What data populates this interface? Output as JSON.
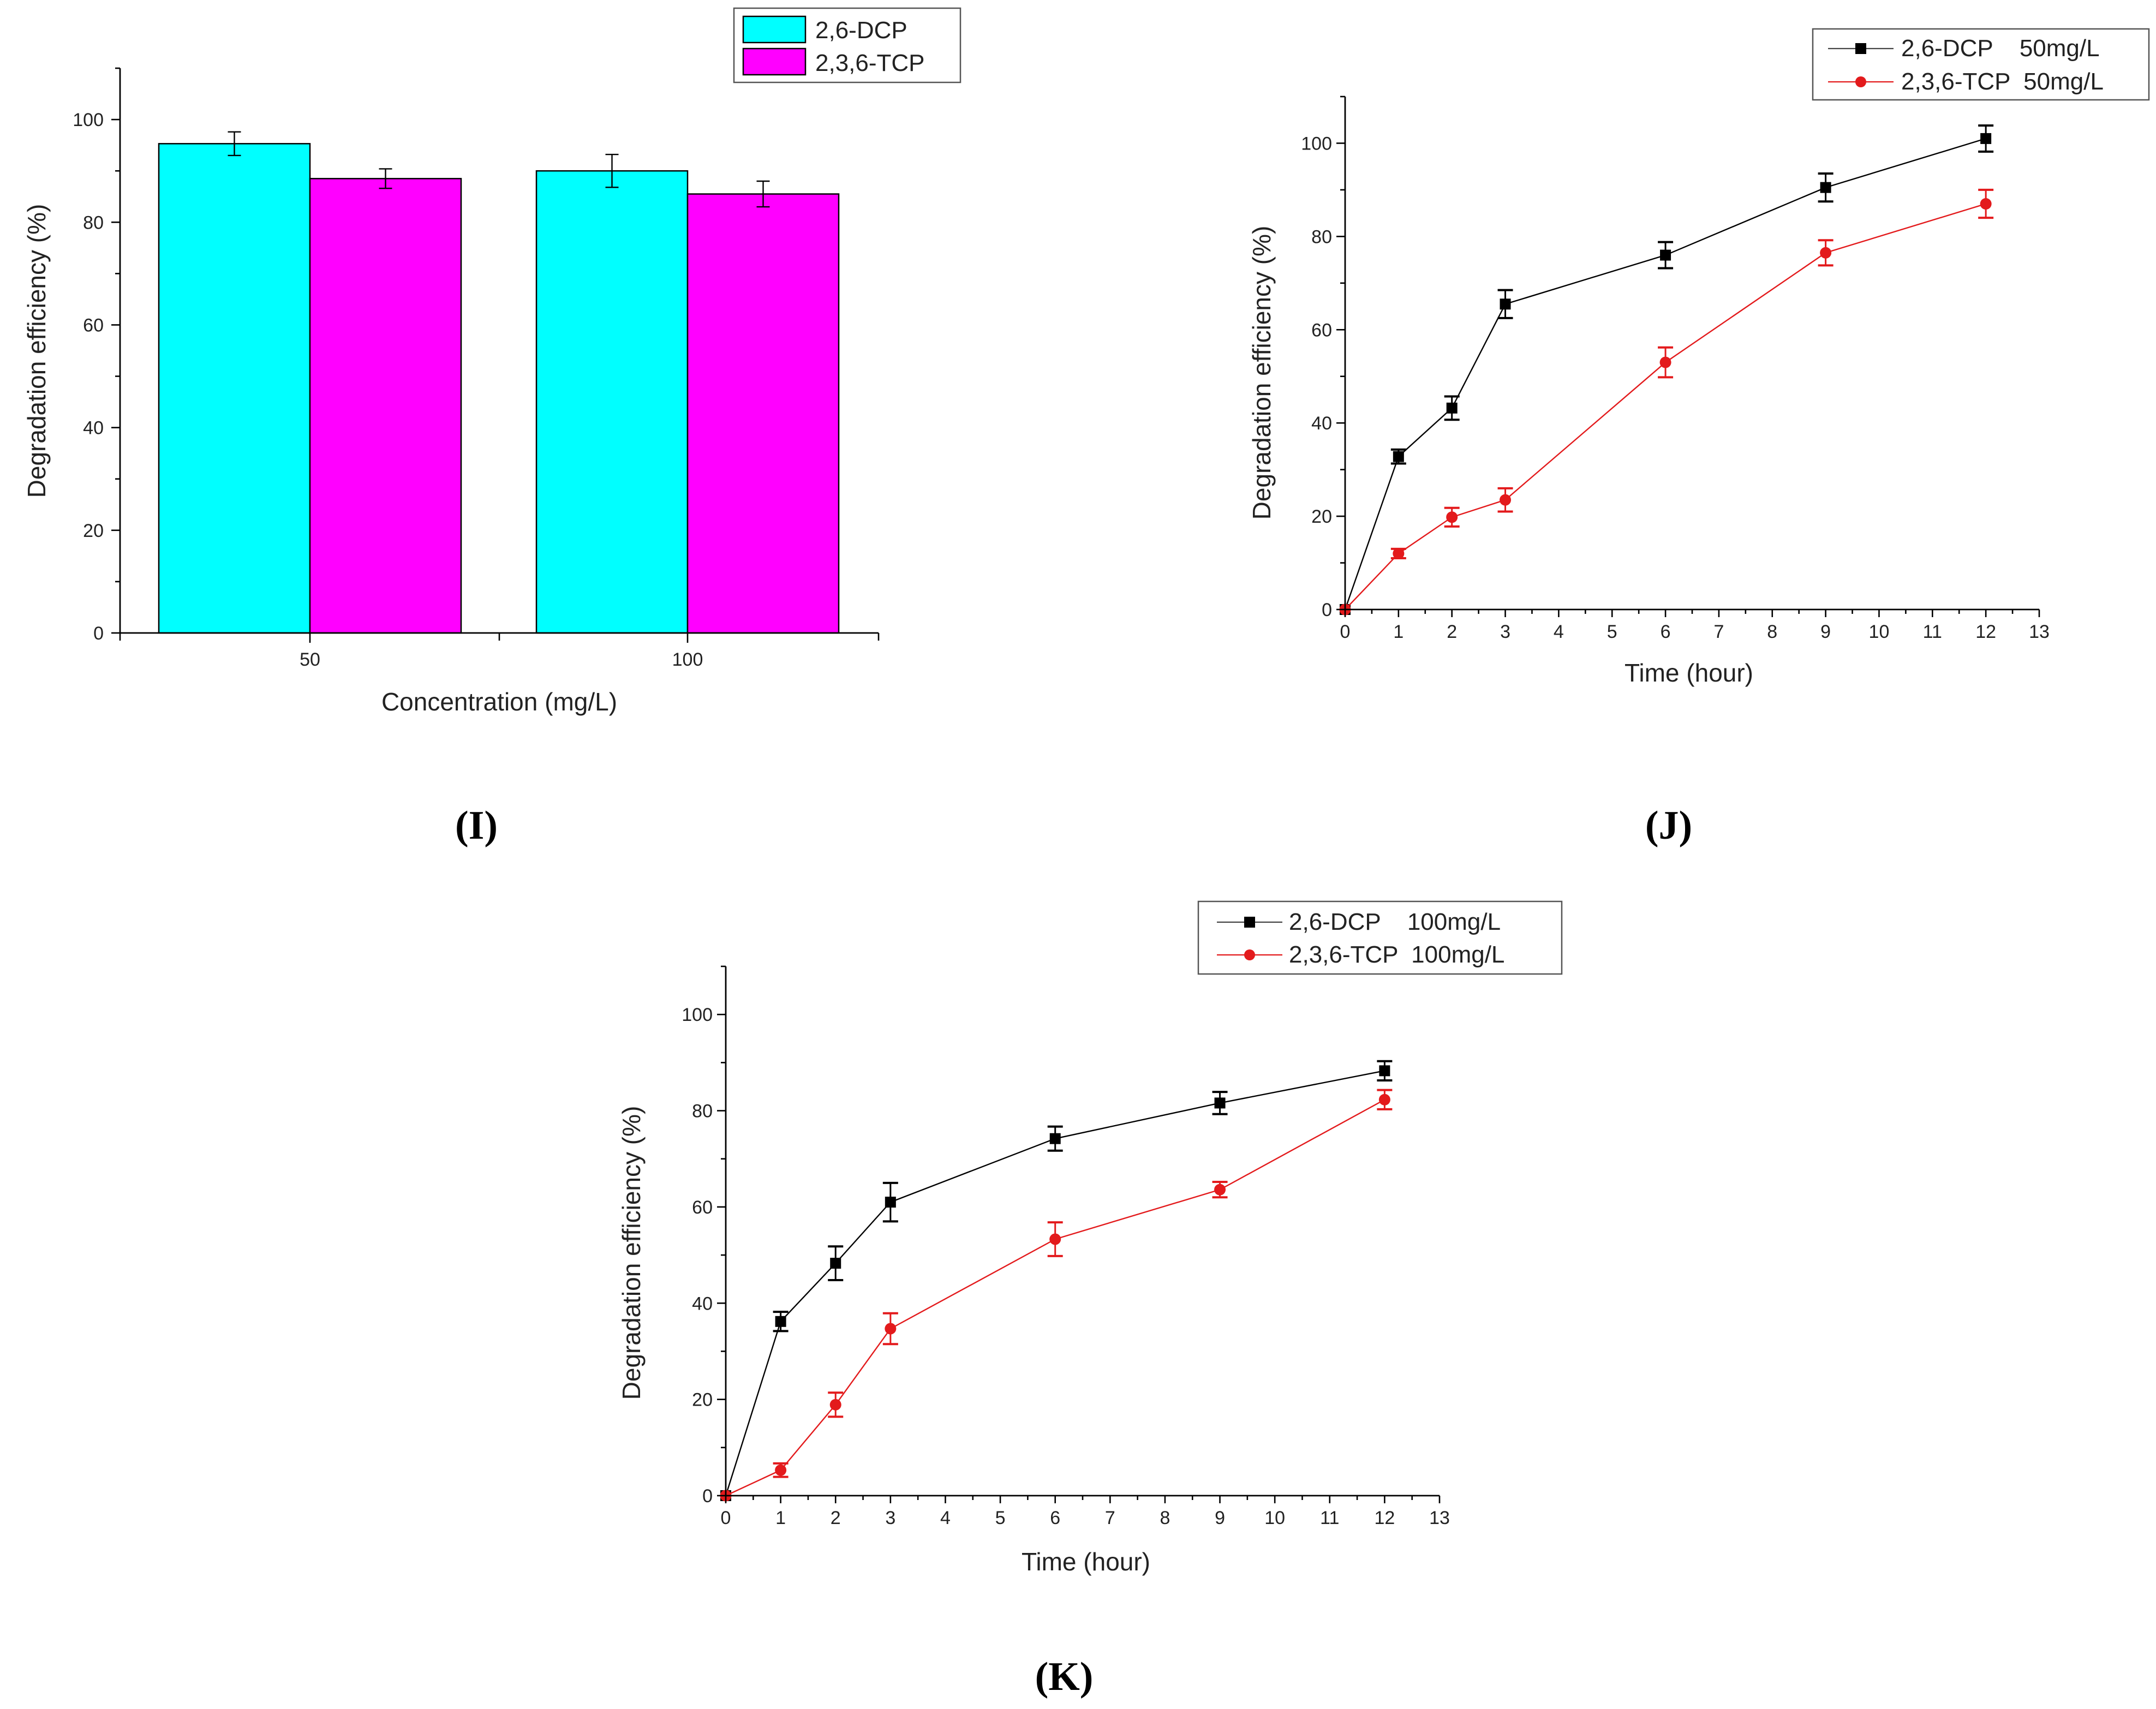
{
  "colors": {
    "dcp_bar": "#00ffff",
    "tcp_bar": "#ff00ff",
    "dcp_line": "#000000",
    "tcp_line": "#e31a1c"
  },
  "chart_data": [
    {
      "id": "I",
      "type": "bar",
      "panel_label": "(I)",
      "xlabel": "Concentration (mg/L)",
      "ylabel": "Degradation efficiency (%)",
      "ylim": [
        0,
        110
      ],
      "yticks": [
        0,
        20,
        40,
        60,
        80,
        100
      ],
      "categories": [
        "50",
        "100"
      ],
      "legend": [
        "2,6-DCP",
        "2,3,6-TCP"
      ],
      "series": [
        {
          "name": "2,6-DCP",
          "values": [
            95.3,
            90.0
          ],
          "errors": [
            2.3,
            3.2
          ]
        },
        {
          "name": "2,3,6-TCP",
          "values": [
            88.5,
            85.5
          ],
          "errors": [
            1.9,
            2.5
          ]
        }
      ]
    },
    {
      "id": "J",
      "type": "line",
      "panel_label": "(J)",
      "xlabel": "Time (hour)",
      "ylabel": "Degradation efficiency (%)",
      "xlim": [
        0,
        13
      ],
      "ylim": [
        0,
        110
      ],
      "xticks": [
        "0",
        "1",
        "2",
        "3",
        "4",
        "5",
        "6",
        "7",
        "8",
        "9",
        "10",
        "11",
        "12",
        "13"
      ],
      "yticks": [
        0,
        20,
        40,
        60,
        80,
        100
      ],
      "x": [
        0,
        1,
        2,
        3,
        6,
        9,
        12
      ],
      "legend": [
        "2,6-DCP    50mg/L",
        "2,3,6-TCP  50mg/L"
      ],
      "series": [
        {
          "name": "2,6-DCP",
          "marker": "square",
          "values": [
            0,
            32.8,
            43.2,
            65.5,
            76.0,
            90.5,
            101.0
          ],
          "errors": [
            0,
            1.5,
            2.5,
            3.0,
            2.8,
            3.0,
            2.8
          ]
        },
        {
          "name": "2,3,6-TCP",
          "marker": "circle",
          "values": [
            0,
            12.0,
            19.8,
            23.5,
            53.0,
            76.5,
            87.0
          ],
          "errors": [
            0,
            1.0,
            2.0,
            2.5,
            3.2,
            2.7,
            3.0
          ]
        }
      ]
    },
    {
      "id": "K",
      "type": "line",
      "panel_label": "(K)",
      "xlabel": "Time (hour)",
      "ylabel": "Degradation efficiency (%)",
      "xlim": [
        0,
        13
      ],
      "ylim": [
        0,
        110
      ],
      "xticks": [
        "0",
        "1",
        "2",
        "3",
        "4",
        "5",
        "6",
        "7",
        "8",
        "9",
        "10",
        "11",
        "12",
        "13"
      ],
      "yticks": [
        0,
        20,
        40,
        60,
        80,
        100
      ],
      "x": [
        0,
        1,
        2,
        3,
        6,
        9,
        12
      ],
      "legend": [
        "2,6-DCP    100mg/L",
        "2,3,6-TCP  100mg/L"
      ],
      "series": [
        {
          "name": "2,6-DCP",
          "marker": "square",
          "values": [
            0,
            36.2,
            48.3,
            61.0,
            74.2,
            81.6,
            88.3
          ],
          "errors": [
            0,
            2.0,
            3.5,
            4.0,
            2.5,
            2.3,
            2.0
          ]
        },
        {
          "name": "2,3,6-TCP",
          "marker": "circle",
          "values": [
            0,
            5.3,
            18.9,
            34.7,
            53.3,
            63.6,
            82.3
          ],
          "errors": [
            0,
            1.4,
            2.5,
            3.2,
            3.5,
            1.6,
            2.0
          ]
        }
      ]
    }
  ]
}
